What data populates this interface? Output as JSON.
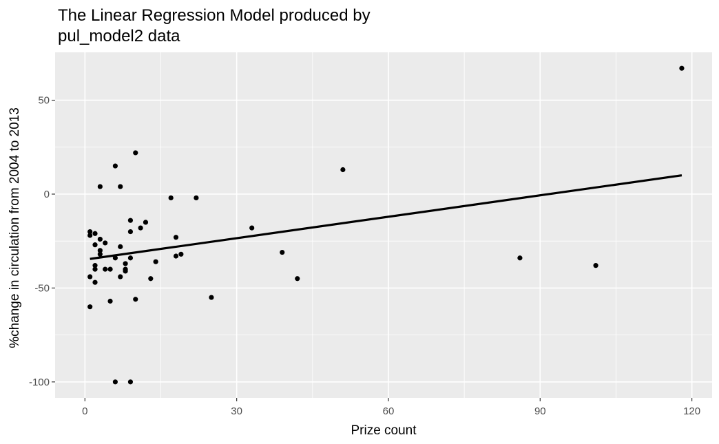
{
  "chart_data": {
    "type": "scatter",
    "title": "The Linear Regression Model produced by pul_model2 data",
    "title_lines": [
      "The Linear Regression Model produced by",
      "pul_model2 data"
    ],
    "xlabel": "Prize count",
    "ylabel": "%change in circulation from 2004 to 2013",
    "xlim": [
      -5.9,
      124
    ],
    "ylim": [
      -108.5,
      75.5
    ],
    "x_ticks": [
      0,
      30,
      60,
      90,
      120
    ],
    "x_tick_labels": [
      "0",
      "30",
      "60",
      "90",
      "120"
    ],
    "y_ticks": [
      -100,
      -50,
      0,
      50
    ],
    "y_tick_labels": [
      "-100",
      "-50",
      "0",
      "50"
    ],
    "grid": true,
    "panel_background": "#ebebeb",
    "grid_color": "#ffffff",
    "point_color": "#000000",
    "line_color": "#000000",
    "points": [
      {
        "x": 1,
        "y": -20
      },
      {
        "x": 1,
        "y": -22
      },
      {
        "x": 1,
        "y": -44
      },
      {
        "x": 1,
        "y": -60
      },
      {
        "x": 2,
        "y": -21
      },
      {
        "x": 2,
        "y": -27
      },
      {
        "x": 2,
        "y": -38
      },
      {
        "x": 2,
        "y": -40
      },
      {
        "x": 2,
        "y": -47
      },
      {
        "x": 3,
        "y": 4
      },
      {
        "x": 3,
        "y": -24
      },
      {
        "x": 3,
        "y": -30
      },
      {
        "x": 3,
        "y": -32
      },
      {
        "x": 4,
        "y": -26
      },
      {
        "x": 4,
        "y": -40
      },
      {
        "x": 5,
        "y": -40
      },
      {
        "x": 5,
        "y": -57
      },
      {
        "x": 6,
        "y": 15
      },
      {
        "x": 6,
        "y": -34
      },
      {
        "x": 6,
        "y": -100
      },
      {
        "x": 7,
        "y": 4
      },
      {
        "x": 7,
        "y": -28
      },
      {
        "x": 7,
        "y": -44
      },
      {
        "x": 8,
        "y": -37
      },
      {
        "x": 8,
        "y": -40
      },
      {
        "x": 8,
        "y": -41
      },
      {
        "x": 9,
        "y": -14
      },
      {
        "x": 9,
        "y": -20
      },
      {
        "x": 9,
        "y": -34
      },
      {
        "x": 9,
        "y": -100
      },
      {
        "x": 10,
        "y": 22
      },
      {
        "x": 10,
        "y": -56
      },
      {
        "x": 11,
        "y": -18
      },
      {
        "x": 12,
        "y": -15
      },
      {
        "x": 13,
        "y": -45
      },
      {
        "x": 14,
        "y": -36
      },
      {
        "x": 17,
        "y": -2
      },
      {
        "x": 18,
        "y": -23
      },
      {
        "x": 18,
        "y": -33
      },
      {
        "x": 19,
        "y": -32
      },
      {
        "x": 22,
        "y": -2
      },
      {
        "x": 25,
        "y": -55
      },
      {
        "x": 33,
        "y": -18
      },
      {
        "x": 39,
        "y": -31
      },
      {
        "x": 42,
        "y": -45
      },
      {
        "x": 51,
        "y": 13
      },
      {
        "x": 86,
        "y": -34
      },
      {
        "x": 101,
        "y": -38
      },
      {
        "x": 118,
        "y": 67
      }
    ],
    "regression_line": {
      "x": [
        1,
        118
      ],
      "y": [
        -34.5,
        10
      ]
    }
  }
}
